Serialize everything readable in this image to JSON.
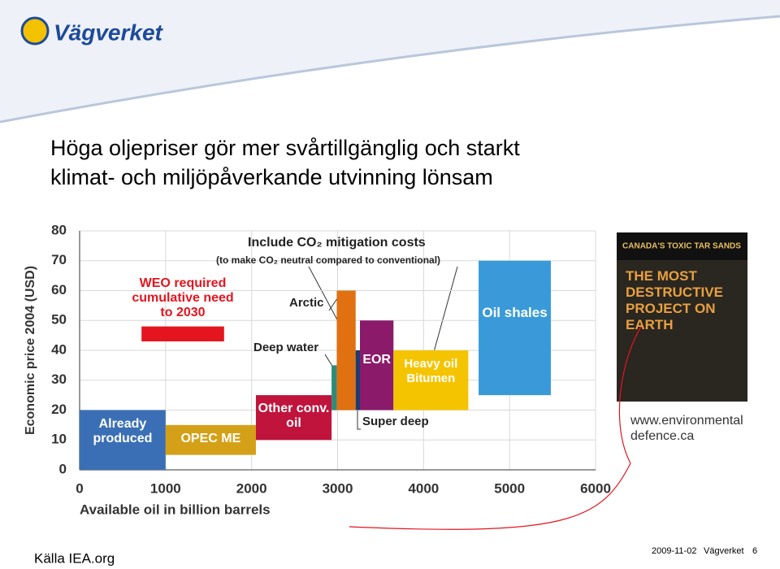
{
  "logo": "Vägverket",
  "title": [
    "Höga oljepriser gör mer svårtillgänglig och starkt",
    "klimat- och miljöpåverkande utvinning lönsam"
  ],
  "chart_data": {
    "type": "range-bar",
    "y_label": "Economic price 2004 (USD)",
    "x_label": "Available oil in billion barrels",
    "annotations": [
      "Include CO₂ mitigation costs",
      "(to make CO₂ neutral compared to conventional)"
    ],
    "xlim": [
      0,
      6000
    ],
    "xticks": [
      0,
      1000,
      2000,
      3000,
      4000,
      5000,
      6000
    ],
    "ylim": [
      0,
      80
    ],
    "yticks": [
      0,
      10,
      20,
      30,
      40,
      50,
      60,
      70,
      80
    ],
    "segments": [
      {
        "name": "Already produced",
        "color": "#3b6fb5",
        "x": [
          0,
          1000
        ],
        "y": [
          0,
          20
        ]
      },
      {
        "name": "OPEC ME",
        "color": "#d4a017",
        "x": [
          1000,
          2050
        ],
        "y": [
          5,
          15
        ]
      },
      {
        "name": "Other conv. oil",
        "color": "#c0143c",
        "x": [
          2050,
          2930
        ],
        "y": [
          10,
          25
        ]
      },
      {
        "name": "Deep water",
        "color": "#2e8b7a",
        "x": [
          2930,
          2990
        ],
        "y": [
          20,
          35
        ]
      },
      {
        "name": "Arctic",
        "color": "#e07010",
        "x": [
          2990,
          3210
        ],
        "y": [
          20,
          60
        ]
      },
      {
        "name": "Super deep",
        "color": "#1f3a6e",
        "x": [
          3210,
          3260
        ],
        "y": [
          20,
          40
        ]
      },
      {
        "name": "EOR",
        "color": "#8b1a6b",
        "x": [
          3260,
          3650
        ],
        "y": [
          20,
          50
        ]
      },
      {
        "name": "Heavy oil Bitumen",
        "color": "#f5c400",
        "x": [
          3650,
          4520
        ],
        "y": [
          20,
          40
        ]
      },
      {
        "name": "Oil shales",
        "color": "#3a9ad9",
        "x": [
          4640,
          5480
        ],
        "y": [
          25,
          70
        ]
      },
      {
        "name": "WEO required cumulative need to 2030",
        "color": "#e4151f",
        "x": [
          720,
          1680
        ],
        "y": [
          43,
          48
        ]
      }
    ]
  },
  "cover": {
    "headline": "CANADA'S TOXIC TAR SANDS",
    "title": "THE MOST DESTRUCTIVE PROJECT ON EARTH"
  },
  "link": "www.environmental defence.ca",
  "source": "Källa IEA.org",
  "footer": {
    "date": "2009-11-02",
    "org": "Vägverket",
    "page": "6"
  }
}
